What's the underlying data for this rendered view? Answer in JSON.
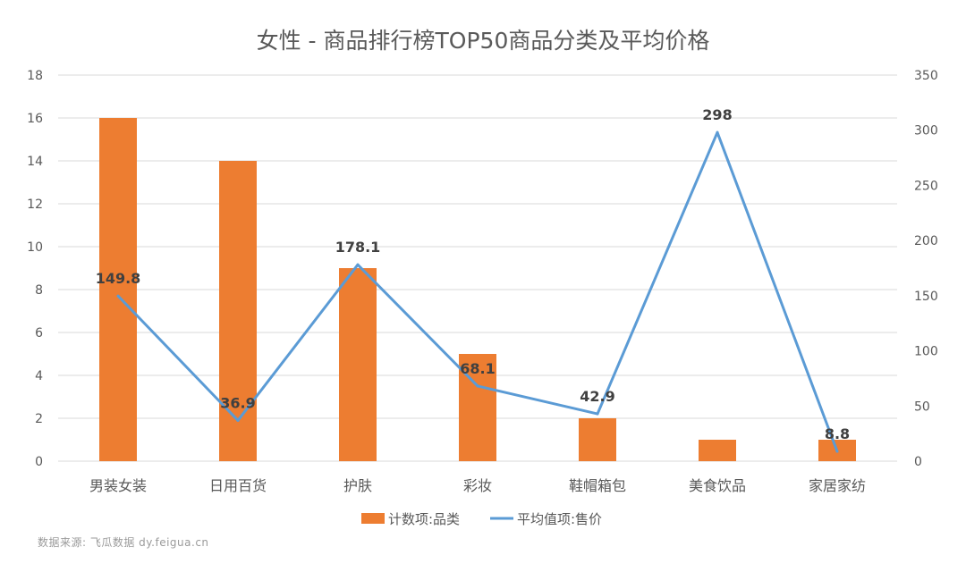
{
  "source_note": "数据来源: 飞瓜数据 dy.feigua.cn",
  "colors": {
    "bar": "#ED7D31",
    "line": "#5B9BD5",
    "text": "#595959",
    "label": "#404040",
    "grid": "#d9d9d9"
  },
  "chart_data": {
    "type": "bar",
    "title": "女性 - 商品排行榜TOP50商品分类及平均价格",
    "categories": [
      "男装女装",
      "日用百货",
      "护肤",
      "彩妆",
      "鞋帽箱包",
      "美食饮品",
      "家居家纺"
    ],
    "series": [
      {
        "name": "计数项:品类",
        "type": "bar",
        "axis": "left",
        "values": [
          16,
          14,
          9,
          5,
          2,
          1,
          1
        ]
      },
      {
        "name": "平均值项:售价",
        "type": "line",
        "axis": "right",
        "values": [
          149.8,
          36.9,
          178.1,
          68.1,
          42.9,
          298,
          8.8
        ],
        "labels": [
          "149.8",
          "36.9",
          "178.1",
          "68.1",
          "42.9",
          "298",
          "8.8"
        ]
      }
    ],
    "y_left": {
      "lim": [
        0,
        18
      ],
      "ticks": [
        "0",
        "2",
        "4",
        "6",
        "8",
        "10",
        "12",
        "14",
        "16",
        "18"
      ]
    },
    "y_right": {
      "lim": [
        0,
        350
      ],
      "ticks": [
        "0",
        "50",
        "100",
        "150",
        "200",
        "250",
        "300",
        "350"
      ]
    },
    "grid": true,
    "legend_position": "bottom"
  }
}
